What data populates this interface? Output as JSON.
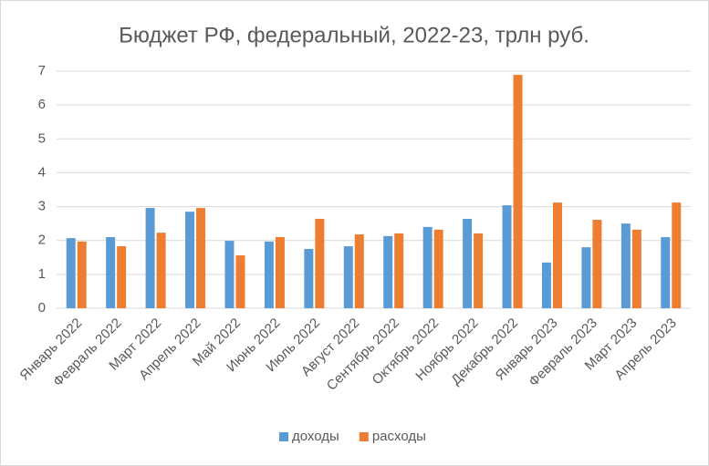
{
  "chart_data": {
    "type": "bar",
    "title": "Бюджет РФ, федеральный, 2022-23, трлн руб.",
    "categories": [
      "Январь 2022",
      "Февраль 2022",
      "Март 2022",
      "Апрель 2022",
      "Май 2022",
      "Июнь 2022",
      "Июль 2022",
      "Август 2022",
      "Сентябрь 2022",
      "Октябрь 2022",
      "Ноябрь 2022",
      "Декабрь 2022",
      "Январь 2023",
      "Февраль 2023",
      "Март 2023",
      "Апрель 2023"
    ],
    "series": [
      {
        "name": "доходы",
        "color": "#5b9bd5",
        "values": [
          2.07,
          2.1,
          2.96,
          2.85,
          1.99,
          1.97,
          1.75,
          1.83,
          2.13,
          2.4,
          2.64,
          3.04,
          1.35,
          1.8,
          2.5,
          2.1
        ]
      },
      {
        "name": "расходы",
        "color": "#ed7d31",
        "values": [
          1.97,
          1.83,
          2.23,
          2.96,
          1.56,
          2.1,
          2.64,
          2.18,
          2.21,
          2.32,
          2.21,
          6.89,
          3.12,
          2.61,
          2.32,
          3.12
        ]
      }
    ],
    "ylim": [
      0,
      7
    ],
    "yticks": [
      0,
      1,
      2,
      3,
      4,
      5,
      6,
      7
    ],
    "grid": true,
    "legend": "bottom"
  }
}
